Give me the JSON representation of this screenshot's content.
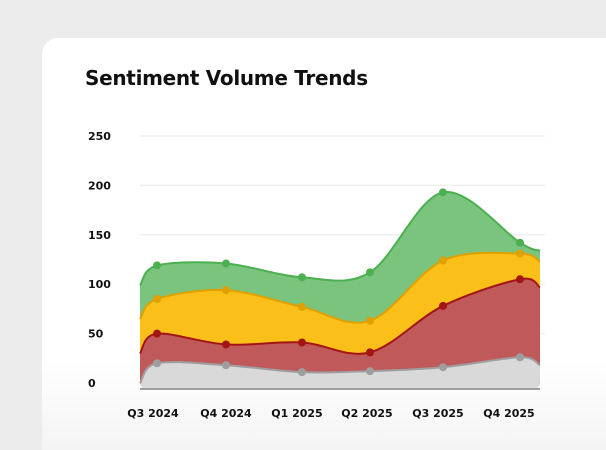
{
  "chart_data": {
    "type": "area",
    "stacked": true,
    "title": "Sentiment Volume Trends",
    "xlabel": "",
    "ylabel": "",
    "categories": [
      "Q3 2024",
      "Q4 2024",
      "Q1 2025",
      "Q2 2025",
      "Q3 2025",
      "Q4 2025"
    ],
    "yticks": [
      "0",
      "50",
      "100",
      "150",
      "200",
      "250"
    ],
    "ylim": [
      0,
      250
    ],
    "grid": true,
    "series": [
      {
        "color": "#9e9e9e",
        "fill": "#d9d9d9",
        "values": [
          20,
          18,
          11,
          12,
          16,
          26
        ]
      },
      {
        "color": "#a31515",
        "fill": "#c05a5a",
        "values": [
          30,
          21,
          30,
          19,
          62,
          79
        ]
      },
      {
        "color": "#e0a000",
        "fill": "#fbbf1a",
        "values": [
          35,
          55,
          36,
          32,
          46,
          26
        ]
      },
      {
        "color": "#4caf50",
        "fill": "#7bc47e",
        "values": [
          34,
          27,
          30,
          49,
          69,
          11
        ]
      }
    ]
  }
}
